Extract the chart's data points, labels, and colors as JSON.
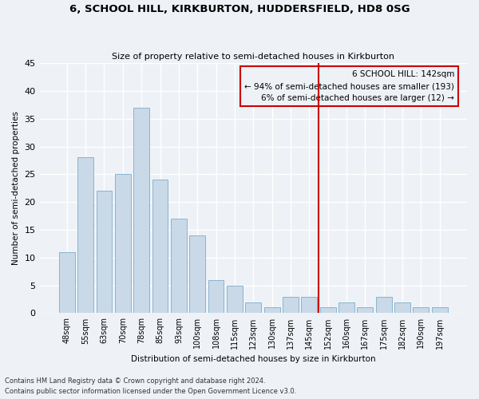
{
  "title": "6, SCHOOL HILL, KIRKBURTON, HUDDERSFIELD, HD8 0SG",
  "subtitle": "Size of property relative to semi-detached houses in Kirkburton",
  "xlabel": "Distribution of semi-detached houses by size in Kirkburton",
  "ylabel": "Number of semi-detached properties",
  "categories": [
    "48sqm",
    "55sqm",
    "63sqm",
    "70sqm",
    "78sqm",
    "85sqm",
    "93sqm",
    "100sqm",
    "108sqm",
    "115sqm",
    "123sqm",
    "130sqm",
    "137sqm",
    "145sqm",
    "152sqm",
    "160sqm",
    "167sqm",
    "175sqm",
    "182sqm",
    "190sqm",
    "197sqm"
  ],
  "values": [
    11,
    28,
    22,
    25,
    37,
    24,
    17,
    14,
    6,
    5,
    2,
    1,
    3,
    3,
    1,
    2,
    1,
    3,
    2,
    1,
    1
  ],
  "bar_color": "#c9d9e8",
  "bar_edge_color": "#8ab4cf",
  "vline_x": 13.5,
  "vline_color": "#cc0000",
  "annotation_title": "6 SCHOOL HILL: 142sqm",
  "annotation_line1": "← 94% of semi-detached houses are smaller (193)",
  "annotation_line2": "6% of semi-detached houses are larger (12) →",
  "annotation_box_color": "#cc0000",
  "ylim": [
    0,
    45
  ],
  "yticks": [
    0,
    5,
    10,
    15,
    20,
    25,
    30,
    35,
    40,
    45
  ],
  "footnote1": "Contains HM Land Registry data © Crown copyright and database right 2024.",
  "footnote2": "Contains public sector information licensed under the Open Government Licence v3.0.",
  "bg_color": "#eef2f7",
  "grid_color": "#ffffff"
}
